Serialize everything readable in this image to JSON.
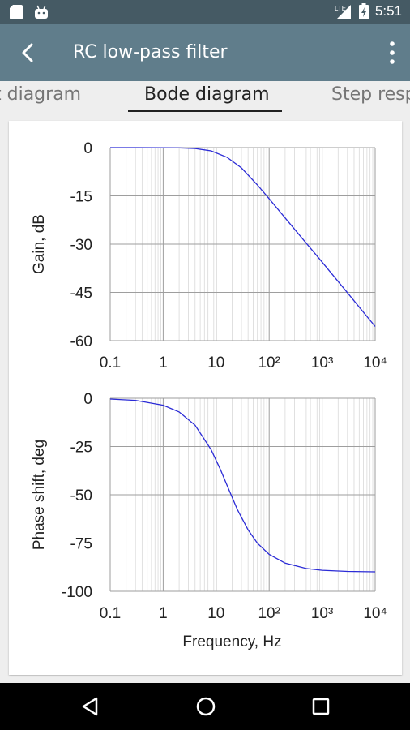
{
  "status_bar": {
    "time": "5:51",
    "icons": [
      "sd-card-icon",
      "android-icon",
      "lte-signal-icon",
      "battery-icon"
    ]
  },
  "app_bar": {
    "title": "RC low-pass filter",
    "icons": [
      "back-arrow-icon",
      "more-vert-icon"
    ]
  },
  "tabs": [
    {
      "label": "Circuit diagram",
      "visible_text": "t diagram",
      "active": false
    },
    {
      "label": "Bode diagram",
      "visible_text": "Bode diagram",
      "active": true
    },
    {
      "label": "Step response",
      "visible_text": "Step resp",
      "active": false
    }
  ],
  "colors": {
    "status_bar": "#455a64",
    "app_bar": "#607d8b",
    "curve": "#2b2bd6",
    "grid": "#bdbdbd"
  },
  "chart_data": [
    {
      "type": "line",
      "xscale": "log",
      "xlim": [
        0.1,
        10000
      ],
      "x_tick_labels": [
        "0.1",
        "1",
        "10",
        "10²",
        "10³",
        "10⁴"
      ],
      "ylabel": "Gain, dB",
      "ylim": [
        -60,
        0
      ],
      "y_ticks": [
        0,
        -15,
        -30,
        -45,
        -60
      ],
      "y_tick_labels": [
        "0",
        "-15",
        "-30",
        "-45",
        "-60"
      ],
      "grid": true,
      "series": [
        {
          "x": [
            0.1,
            0.3,
            1,
            2,
            4,
            8,
            16,
            30,
            60,
            100,
            300,
            1000,
            3000,
            10000
          ],
          "y": [
            0,
            0,
            -0.02,
            -0.07,
            -0.28,
            -1.0,
            -3.0,
            -6.3,
            -11.6,
            -15.9,
            -25.3,
            -35.6,
            -45.1,
            -55.6
          ]
        }
      ]
    },
    {
      "type": "line",
      "xscale": "log",
      "xlim": [
        0.1,
        10000
      ],
      "x_tick_labels": [
        "0.1",
        "1",
        "10",
        "10²",
        "10³",
        "10⁴"
      ],
      "xlabel": "Frequency, Hz",
      "ylabel": "Phase shift, deg",
      "ylim": [
        -100,
        0
      ],
      "y_ticks": [
        0,
        -25,
        -50,
        -75,
        -100
      ],
      "y_tick_labels": [
        "0",
        "-25",
        "-50",
        "-75",
        "-100"
      ],
      "grid": true,
      "series": [
        {
          "x": [
            0.1,
            0.3,
            1,
            2,
            4,
            8,
            12,
            16,
            25,
            40,
            60,
            100,
            200,
            500,
            1000,
            3000,
            10000
          ],
          "y": [
            -0.4,
            -1.1,
            -3.6,
            -7.1,
            -14.0,
            -26.6,
            -36.9,
            -45.0,
            -57.5,
            -68.2,
            -75.1,
            -80.9,
            -85.4,
            -88.2,
            -89.1,
            -89.7,
            -89.9
          ]
        }
      ]
    }
  ]
}
